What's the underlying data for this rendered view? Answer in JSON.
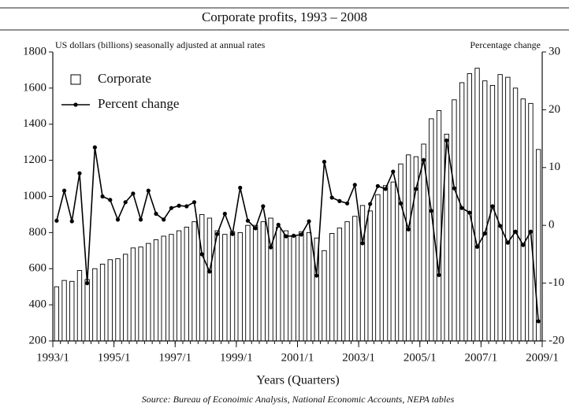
{
  "chart_data": {
    "type": "bar-line",
    "title": "Corporate profits, 1993 – 2008",
    "ylabel": "US dollars (billions) seasonally adjusted at annual rates",
    "y2label": "Percentage change",
    "xlabel": "Years (Quarters)",
    "source": "Source: Bureau of Econoimic Analysis, National Economic Accounts, NEPA tables",
    "x": [
      1993,
      1993.25,
      1993.5,
      1993.75,
      1994,
      1994.25,
      1994.5,
      1994.75,
      1995,
      1995.25,
      1995.5,
      1995.75,
      1996,
      1996.25,
      1996.5,
      1996.75,
      1997,
      1997.25,
      1997.5,
      1997.75,
      1998,
      1998.25,
      1998.5,
      1998.75,
      1999,
      1999.25,
      1999.5,
      1999.75,
      2000,
      2000.25,
      2000.5,
      2000.75,
      2001,
      2001.25,
      2001.5,
      2001.75,
      2002,
      2002.25,
      2002.5,
      2002.75,
      2003,
      2003.25,
      2003.5,
      2003.75,
      2004,
      2004.25,
      2004.5,
      2004.75,
      2005,
      2005.25,
      2005.5,
      2005.75,
      2006,
      2006.25,
      2006.5,
      2006.75,
      2007,
      2007.25,
      2007.5,
      2007.75,
      2008,
      2008.25,
      2008.5,
      2008.75
    ],
    "xlim": [
      1993,
      2009
    ],
    "xticks": [
      {
        "value": 1993,
        "label": "1993/1"
      },
      {
        "value": 1995,
        "label": "1995/1"
      },
      {
        "value": 1997,
        "label": "1997/1"
      },
      {
        "value": 1999,
        "label": "1999/1"
      },
      {
        "value": 2001,
        "label": "2001/1"
      },
      {
        "value": 2003,
        "label": "2003/1"
      },
      {
        "value": 2005,
        "label": "2005/1"
      },
      {
        "value": 2007,
        "label": "2007/1"
      },
      {
        "value": 2009,
        "label": "2009/1"
      }
    ],
    "ylim": [
      200,
      1800
    ],
    "yticks": [
      200,
      400,
      600,
      800,
      1000,
      1200,
      1400,
      1600,
      1800
    ],
    "y2lim": [
      -20,
      30
    ],
    "y2ticks": [
      -20,
      -10,
      0,
      10,
      20,
      30
    ],
    "legend": "upper left",
    "series": [
      {
        "name": "Corporate",
        "kind": "bar",
        "color": "#000000",
        "values": [
          500,
          535,
          530,
          590,
          540,
          600,
          625,
          650,
          655,
          680,
          715,
          720,
          740,
          760,
          780,
          790,
          810,
          830,
          860,
          900,
          880,
          810,
          790,
          805,
          800,
          840,
          840,
          860,
          880,
          830,
          810,
          780,
          805,
          800,
          770,
          700,
          795,
          825,
          860,
          890,
          950,
          920,
          1010,
          1060,
          1080,
          1180,
          1230,
          1220,
          1290,
          1430,
          1475,
          1345,
          1535,
          1630,
          1680,
          1710,
          1640,
          1615,
          1675,
          1660,
          1600,
          1540,
          1515,
          1260
        ]
      },
      {
        "name": "Percent change",
        "kind": "line",
        "axis": "y2",
        "color": "#000000",
        "values": [
          0.8,
          6,
          0.7,
          9,
          -10,
          13.5,
          5,
          4.4,
          1,
          4,
          5.5,
          1,
          6,
          2,
          1,
          3,
          3.4,
          3.3,
          4,
          -5,
          -8,
          -1.5,
          2,
          -1.5,
          6.5,
          0.8,
          -0.5,
          3.3,
          -3.8,
          0.1,
          -1.9,
          -1.8,
          -1.6,
          0.7,
          -8.7,
          11,
          4.8,
          4.2,
          3.8,
          7,
          -3.1,
          3.7,
          6.8,
          6.3,
          9.3,
          3.8,
          -0.7,
          6.3,
          11.3,
          2.5,
          -8.6,
          14.7,
          6.4,
          3,
          2.2,
          -3.7,
          -1.4,
          3.3,
          -0.1,
          -3,
          -1.1,
          -3.4,
          -1.1,
          -16.6
        ]
      }
    ]
  }
}
